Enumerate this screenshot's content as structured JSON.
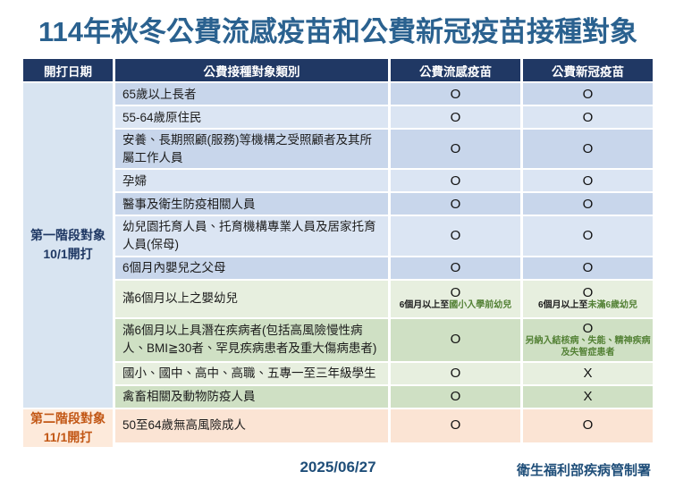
{
  "title": "114年秋冬公費流感疫苗和公費新冠疫苗接種對象",
  "colors": {
    "title_blue": "#2a618f",
    "header_navy": "#203864",
    "phase1_label": "#1f3864",
    "phase2_label": "#c25715",
    "note_green": "#538135",
    "row_blue_dark": "#c8d6eb",
    "row_blue_light": "#dbe5f3",
    "row_green_light": "#e7efdf",
    "row_green_dark": "#cfe0c4",
    "row_peach": "#fbe4d4"
  },
  "table": {
    "headers": {
      "date": "開打日期",
      "category": "公費接種對象類別",
      "flu": "公費流感疫苗",
      "covid": "公費新冠疫苗"
    },
    "phase1": {
      "label_line1": "第一階段對象",
      "label_line2": "10/1開打",
      "rows": [
        {
          "category": "65歲以上長者",
          "flu": "O",
          "covid": "O"
        },
        {
          "category": "55-64歲原住民",
          "flu": "O",
          "covid": "O"
        },
        {
          "category": "安養、長期照顧(服務)等機構之受照顧者及其所屬工作人員",
          "flu": "O",
          "covid": "O"
        },
        {
          "category": "孕婦",
          "flu": "O",
          "covid": "O"
        },
        {
          "category": "醫事及衛生防疫相關人員",
          "flu": "O",
          "covid": "O"
        },
        {
          "category": "幼兒園托育人員、托育機構專業人員及居家托育人員(保母)",
          "flu": "O",
          "covid": "O"
        },
        {
          "category": "6個月內嬰兒之父母",
          "flu": "O",
          "covid": "O"
        },
        {
          "category": "滿6個月以上之嬰幼兒",
          "flu": "O",
          "flu_note_plain": "6個月以上至",
          "flu_note_highlight": "國小入學前幼兒",
          "covid": "O",
          "covid_note_plain": "6個月以上至",
          "covid_note_highlight": "未滿6歲幼兒"
        },
        {
          "category": "滿6個月以上具潛在疾病者(包括高風險慢性病人、BMI≧30者、罕見疾病患者及重大傷病患者)",
          "flu": "O",
          "covid": "O",
          "covid_note_highlight": "另納入結核病、失能、精神疾病及失智症患者"
        },
        {
          "category": "國小、國中、高中、高職、五專一至三年級學生",
          "flu": "O",
          "covid": "X"
        },
        {
          "category": "禽畜相關及動物防疫人員",
          "flu": "O",
          "covid": "X"
        }
      ]
    },
    "phase2": {
      "label_line1": "第二階段對象",
      "label_line2": "11/1開打",
      "rows": [
        {
          "category": "50至64歲無高風險成人",
          "flu": "O",
          "covid": "O"
        }
      ]
    }
  },
  "footer": {
    "date": "2025/06/27",
    "agency": "衛生福利部疾病管制署"
  }
}
